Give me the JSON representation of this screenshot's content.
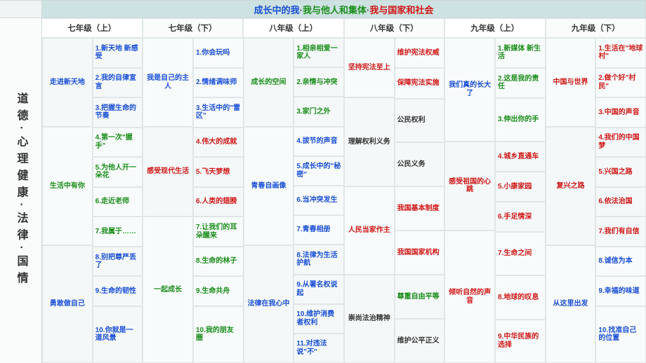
{
  "title": {
    "p1": "成长中的我",
    "p2": "我与他人和集体",
    "p3": "我与国家和社会"
  },
  "side": "道德·心理健康·法律·国情",
  "columns": [
    "七年级（上）",
    "七年级（下）",
    "八年级（上）",
    "八年级（下）",
    "九年级（上）",
    "九年级（下）"
  ],
  "c1": {
    "g1": "走进新天地",
    "i1": "1.新天地 新感受",
    "i2": "2.我的自律宣言",
    "i3": "3.把握生命的节奏",
    "g2": "生活中有你",
    "i4": "4.第一次\"握手\"",
    "i5": "5.为他人开一朵花",
    "i6": "6.走近老师",
    "i7": "7.我属于……",
    "g3": "勇敢做自己",
    "i8": "8.别把尊严丢了",
    "i9": "9.生命的韧性",
    "i10": "10.你就是一道风景"
  },
  "c2": {
    "g1": "我是自己的主人",
    "i1": "1.你会玩吗",
    "i2": "2.情绪调味师",
    "i3": "3.生活中的\"雷区\"",
    "g2": "感受现代生活",
    "i4": "4.伟大的成就",
    "i5": "5.飞天梦想",
    "i6": "6.人类的翅膀",
    "g3": "一起成长",
    "i7": "7.让我们的耳朵醒来",
    "i8": "8.生命的林子",
    "i9": "9.生命共舟",
    "i10": "10.我的朋友圈"
  },
  "c3": {
    "g1": "成长的空间",
    "i1": "1.相亲相爱一家人",
    "i2": "2.亲情与冲突",
    "i3": "3.家门之外",
    "g2": "青春自画像",
    "i4": "4.拔节的声音",
    "i5": "5.成长中的\"秘密\"",
    "i6": "6.当冲突发生",
    "i7": "7.青春相册",
    "g3": "法律在我心中",
    "i8": "8.法律为生活护航",
    "i9": "9.从署名权说起",
    "i10": "10.维护消费者权利",
    "i11": "11.对违法说\"不\""
  },
  "c4": {
    "g1": "坚持宪法至上",
    "r1": "维护宪法权威",
    "r2": "保障宪法实施",
    "g2": "理解权利义务",
    "r3": "公民权利",
    "r4": "公民义务",
    "g3": "人民当家作主",
    "r5": "我国基本制度",
    "r6": "我国国家机构",
    "g4": "崇尚法治精神",
    "r7": "尊重自由平等",
    "r8": "维护公平正义"
  },
  "c5": {
    "g1": "我们真的长大了",
    "i1": "1.新媒体 新生活",
    "i2": "2.这是我的责任",
    "i3": "3.伸出你的手",
    "g2": "感受祖国的心跳",
    "i4": "4.城乡直通车",
    "i5": "5.小康家园",
    "i6": "6.手足情深",
    "g3": "倾听自然的声音",
    "i7": "7.生命之间",
    "i8": "8.地球的叹息",
    "i9": "9.中华民族的选择"
  },
  "c6": {
    "g1": "中国与世界",
    "i1": "1.生活在\"地球村\"",
    "i2": "2.做个好\"村民\"",
    "i3": "3.中国的声音",
    "g2": "复兴之路",
    "i4": "4.我们的中国梦",
    "i5": "5.兴国之路",
    "i6": "6.依法治国",
    "i7": "7.我们有自信",
    "g3": "从这里出发",
    "i8": "8.诚信为本",
    "i9": "9.幸福的味道",
    "i10": "10.找准自己的位置"
  }
}
